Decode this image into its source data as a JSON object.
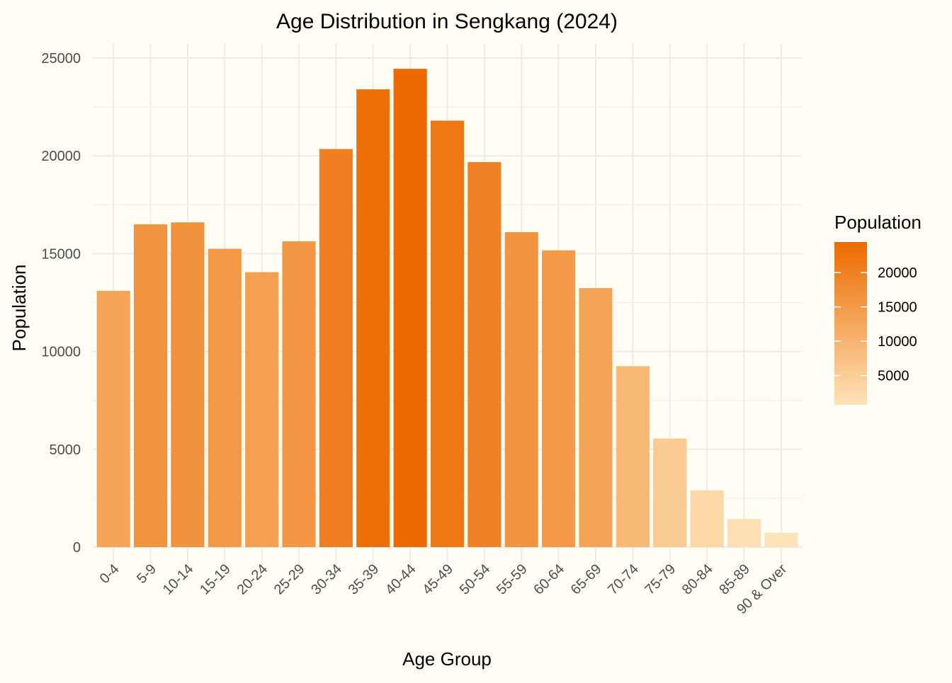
{
  "chart_data": {
    "type": "bar",
    "title": "Age Distribution in Sengkang (2024)",
    "xlabel": "Age Group",
    "ylabel": "Population",
    "categories": [
      "0-4",
      "5-9",
      "10-14",
      "15-19",
      "20-24",
      "25-29",
      "30-34",
      "35-39",
      "40-44",
      "45-49",
      "50-54",
      "55-59",
      "60-64",
      "65-69",
      "70-74",
      "75-79",
      "80-84",
      "85-89",
      "90 & Over"
    ],
    "values": [
      13100,
      16500,
      16600,
      15250,
      14050,
      15630,
      20350,
      23400,
      24450,
      21800,
      19680,
      16100,
      15170,
      13240,
      9250,
      5550,
      2900,
      1430,
      730
    ],
    "ylim": [
      0,
      25000
    ],
    "yticks": [
      0,
      5000,
      10000,
      15000,
      20000,
      25000
    ],
    "grid": true,
    "legend": {
      "title": "Population",
      "placement": "right",
      "type": "colorbar",
      "ticks": [
        5000,
        10000,
        15000,
        20000
      ],
      "low_color": "#fee3b8",
      "high_color": "#ec6a00",
      "range": [
        730,
        24450
      ]
    },
    "background": "#fffdf4",
    "grid_color": "#ebebeb"
  }
}
